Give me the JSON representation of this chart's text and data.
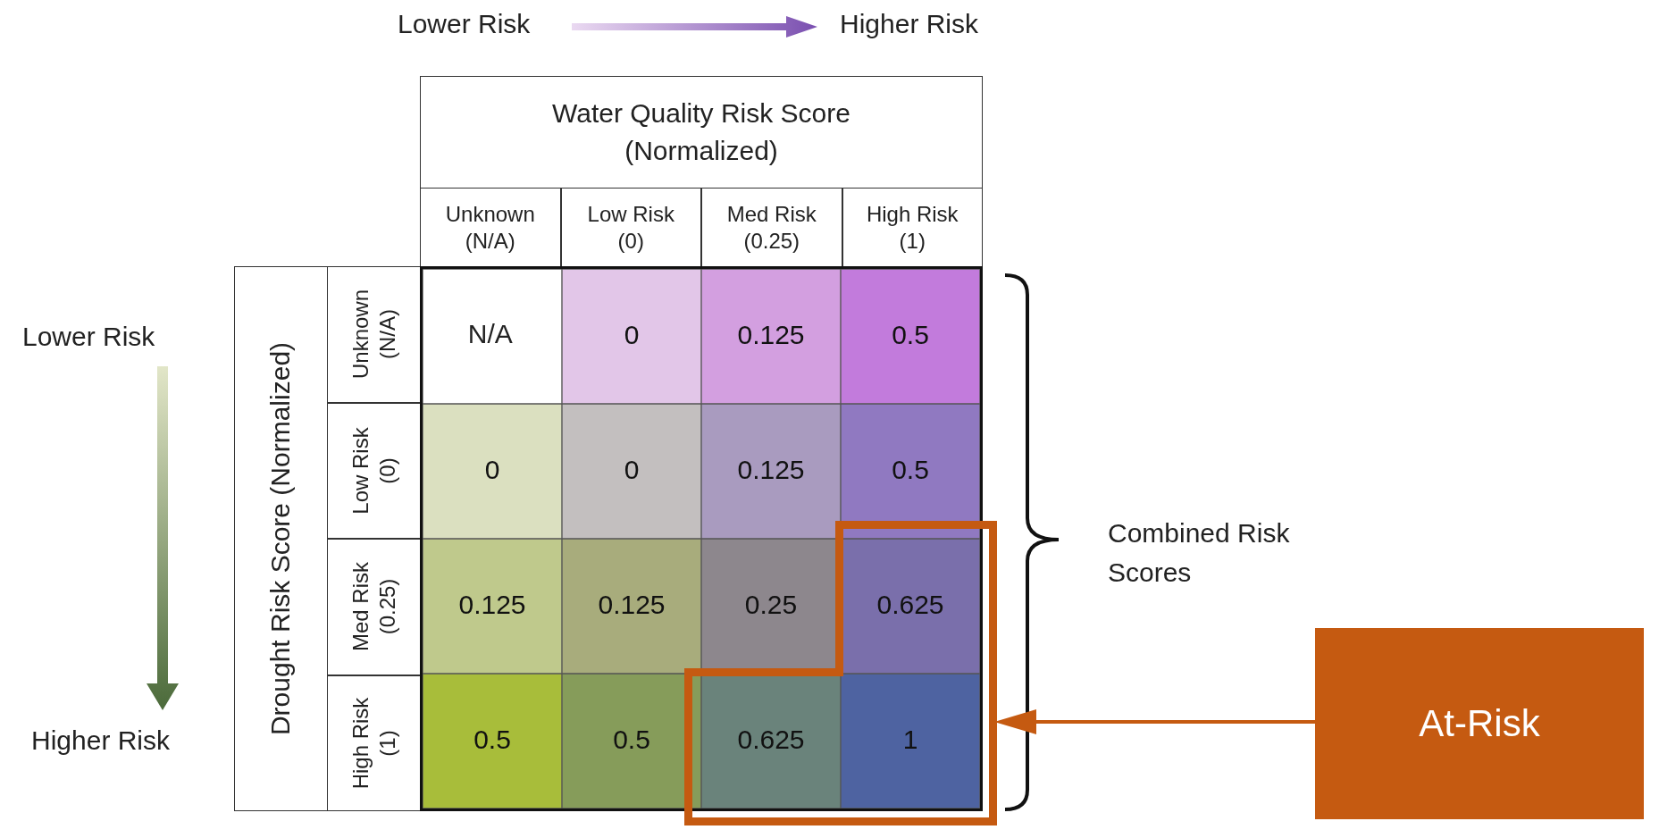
{
  "chart_data": {
    "type": "heatmap",
    "xlabel": "Water Quality Risk Score (Normalized)",
    "ylabel": "Drought Risk Score (Normalized)",
    "categories": [
      "Unknown (N/A)",
      "Low Risk (0)",
      "Med Risk (0.25)",
      "High Risk (1)"
    ],
    "y_categories": [
      "Unknown (N/A)",
      "Low Risk (0)",
      "Med Risk (0.25)",
      "High Risk (1)"
    ],
    "cells": [
      [
        null,
        0,
        0.125,
        0.5
      ],
      [
        0,
        0,
        0.125,
        0.5
      ],
      [
        0.125,
        0.125,
        0.25,
        0.625
      ],
      [
        0.5,
        0.5,
        0.625,
        1
      ]
    ],
    "colors": [
      [
        "#ffffff",
        "#e2c6e8",
        "#d39fe0",
        "#c27bdc"
      ],
      [
        "#dbe0c0",
        "#c3bfbf",
        "#a99bbf",
        "#9079c1"
      ],
      [
        "#bfc98c",
        "#a8ac7c",
        "#8d878d",
        "#7a6fab"
      ],
      [
        "#a8bd3a",
        "#869c5a",
        "#6a837b",
        "#4e63a1"
      ]
    ],
    "data_labels": true,
    "annotations": [
      "N/A",
      "Lower Risk",
      "Higher Risk",
      "Lower Risk",
      "Higher Risk",
      "Combined Risk Scores",
      "At-Risk"
    ]
  }
}
